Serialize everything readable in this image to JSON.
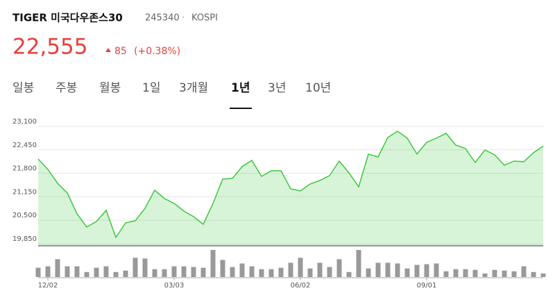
{
  "header": {
    "name": "TIGER 미국다우존스30",
    "code": "245340",
    "separator": "·",
    "market": "KOSPI"
  },
  "quote": {
    "price": "22,555",
    "change": "85",
    "change_pct": "(+0.38%)"
  },
  "tabs": [
    "일봉",
    "주봉",
    "월봉",
    "1일",
    "3개월",
    "1년",
    "3년",
    "10년"
  ],
  "selected_tab": 5,
  "chart_data": {
    "type": "line",
    "categories": [
      null,
      "12/02",
      null,
      null,
      null,
      null,
      null,
      null,
      null,
      null,
      null,
      null,
      null,
      null,
      "03/03",
      null,
      null,
      null,
      null,
      null,
      null,
      null,
      null,
      null,
      null,
      null,
      null,
      "06/02",
      null,
      null,
      null,
      null,
      null,
      null,
      null,
      null,
      null,
      null,
      null,
      null,
      "09/01",
      null,
      null,
      null,
      null,
      null,
      null,
      null,
      null,
      null,
      null,
      null,
      null
    ],
    "series": [
      {
        "color": "#3cc83c",
        "values": [
          22196,
          21908,
          21523,
          21254,
          20677,
          20312,
          20465,
          20773,
          20023,
          20427,
          20485,
          20831,
          21331,
          21100,
          20965,
          20754,
          20600,
          20388,
          20965,
          21638,
          21658,
          21985,
          22158,
          21715,
          21869,
          21869,
          21369,
          21312,
          21504,
          21600,
          21735,
          22139,
          21812,
          21427,
          22331,
          22254,
          22792,
          22965,
          22773,
          22331,
          22658,
          22773,
          22908,
          22581,
          22485,
          22100,
          22446,
          22312,
          22023,
          22139,
          22119,
          22369,
          22555
        ]
      }
    ],
    "volume": {
      "color": "#999999",
      "values": [
        13,
        15,
        25,
        15,
        15,
        7,
        13,
        15,
        7,
        9,
        27,
        26,
        11,
        11,
        15,
        15,
        14,
        13,
        38,
        24,
        14,
        19,
        15,
        11,
        11,
        13,
        20,
        27,
        12,
        20,
        14,
        25,
        7,
        38,
        12,
        20,
        20,
        19,
        12,
        17,
        18,
        19,
        8,
        11,
        11,
        10,
        5,
        10,
        9,
        8,
        15,
        7,
        5
      ]
    },
    "ylim": [
      19850,
      23100
    ],
    "yticks": [
      {
        "value": 19850,
        "label": "19,850"
      },
      {
        "value": 20500,
        "label": "20,500"
      },
      {
        "value": 21150,
        "label": "21,150"
      },
      {
        "value": 21800,
        "label": "21,800"
      },
      {
        "value": 22450,
        "label": "22,450"
      },
      {
        "value": 23100,
        "label": "23,100"
      }
    ],
    "grid": true
  }
}
